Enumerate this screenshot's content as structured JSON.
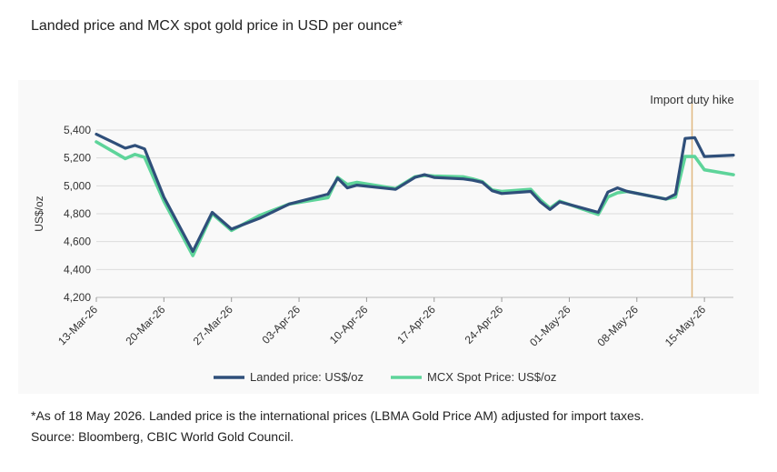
{
  "title": "Landed price and MCX spot gold price in USD per ounce*",
  "footnote": [
    "*As of 18 May 2026. Landed price is the international prices (LBMA Gold Price AM) adjusted for import taxes.",
    "Source: Bloomberg, CBIC World Gold Council."
  ],
  "chart_data": {
    "type": "line",
    "title": "Landed price and MCX spot gold price in USD per ounce*",
    "ylabel": "US$/oz",
    "xlabel": "",
    "ylim": [
      4200,
      5400
    ],
    "yticks": [
      4200,
      4400,
      4600,
      4800,
      5000,
      5200,
      5400
    ],
    "ytick_labels": [
      "4,200",
      "4,400",
      "4,600",
      "4,800",
      "5,000",
      "5,200",
      "5,400"
    ],
    "xlim": [
      "2026-03-13",
      "2026-05-18"
    ],
    "xticks": [
      "2026-03-13",
      "2026-03-20",
      "2026-03-27",
      "2026-04-03",
      "2026-04-10",
      "2026-04-17",
      "2026-04-24",
      "2026-05-01",
      "2026-05-08",
      "2026-05-15"
    ],
    "xtick_labels": [
      "13-Mar-26",
      "20-Mar-26",
      "27-Mar-26",
      "03-Apr-26",
      "10-Apr-26",
      "17-Apr-26",
      "24-Apr-26",
      "01-May-26",
      "08-May-26",
      "15-May-26"
    ],
    "grid": "horizontal",
    "legend_position": "bottom",
    "annotation": {
      "label": "Import duty hike",
      "x": "2026-05-14",
      "color": "#e0b880"
    },
    "series": [
      {
        "name": "Landed price: US$/oz",
        "color": "#2f4f7a",
        "points": [
          [
            "2026-03-13",
            5370
          ],
          [
            "2026-03-16",
            5270
          ],
          [
            "2026-03-17",
            5290
          ],
          [
            "2026-03-18",
            5265
          ],
          [
            "2026-03-20",
            4920
          ],
          [
            "2026-03-23",
            4530
          ],
          [
            "2026-03-25",
            4810
          ],
          [
            "2026-03-27",
            4690
          ],
          [
            "2026-03-30",
            4770
          ],
          [
            "2026-04-02",
            4870
          ],
          [
            "2026-04-06",
            4940
          ],
          [
            "2026-04-07",
            5055
          ],
          [
            "2026-04-08",
            4985
          ],
          [
            "2026-04-09",
            5005
          ],
          [
            "2026-04-13",
            4975
          ],
          [
            "2026-04-15",
            5060
          ],
          [
            "2026-04-16",
            5080
          ],
          [
            "2026-04-17",
            5060
          ],
          [
            "2026-04-20",
            5050
          ],
          [
            "2026-04-21",
            5040
          ],
          [
            "2026-04-22",
            5025
          ],
          [
            "2026-04-23",
            4965
          ],
          [
            "2026-04-24",
            4945
          ],
          [
            "2026-04-27",
            4960
          ],
          [
            "2026-04-28",
            4885
          ],
          [
            "2026-04-29",
            4830
          ],
          [
            "2026-04-30",
            4885
          ],
          [
            "2026-05-04",
            4810
          ],
          [
            "2026-05-05",
            4955
          ],
          [
            "2026-05-06",
            4985
          ],
          [
            "2026-05-07",
            4960
          ],
          [
            "2026-05-11",
            4905
          ],
          [
            "2026-05-12",
            4940
          ],
          [
            "2026-05-13",
            5340
          ],
          [
            "2026-05-14",
            5345
          ],
          [
            "2026-05-15",
            5210
          ],
          [
            "2026-05-18",
            5220
          ]
        ]
      },
      {
        "name": "MCX Spot Price: US$/oz",
        "color": "#5ed49a",
        "points": [
          [
            "2026-03-13",
            5315
          ],
          [
            "2026-03-16",
            5195
          ],
          [
            "2026-03-17",
            5225
          ],
          [
            "2026-03-18",
            5205
          ],
          [
            "2026-03-20",
            4890
          ],
          [
            "2026-03-23",
            4500
          ],
          [
            "2026-03-25",
            4800
          ],
          [
            "2026-03-27",
            4680
          ],
          [
            "2026-03-30",
            4790
          ],
          [
            "2026-04-02",
            4870
          ],
          [
            "2026-04-06",
            4915
          ],
          [
            "2026-04-07",
            5060
          ],
          [
            "2026-04-08",
            5010
          ],
          [
            "2026-04-09",
            5025
          ],
          [
            "2026-04-13",
            4980
          ],
          [
            "2026-04-15",
            5065
          ],
          [
            "2026-04-16",
            5075
          ],
          [
            "2026-04-17",
            5070
          ],
          [
            "2026-04-20",
            5065
          ],
          [
            "2026-04-21",
            5050
          ],
          [
            "2026-04-22",
            5030
          ],
          [
            "2026-04-23",
            4970
          ],
          [
            "2026-04-24",
            4960
          ],
          [
            "2026-04-27",
            4975
          ],
          [
            "2026-04-28",
            4900
          ],
          [
            "2026-04-29",
            4840
          ],
          [
            "2026-04-30",
            4890
          ],
          [
            "2026-05-04",
            4795
          ],
          [
            "2026-05-05",
            4920
          ],
          [
            "2026-05-06",
            4950
          ],
          [
            "2026-05-07",
            4960
          ],
          [
            "2026-05-11",
            4905
          ],
          [
            "2026-05-12",
            4920
          ],
          [
            "2026-05-13",
            5210
          ],
          [
            "2026-05-14",
            5210
          ],
          [
            "2026-05-15",
            5115
          ],
          [
            "2026-05-18",
            5080
          ]
        ]
      }
    ]
  }
}
